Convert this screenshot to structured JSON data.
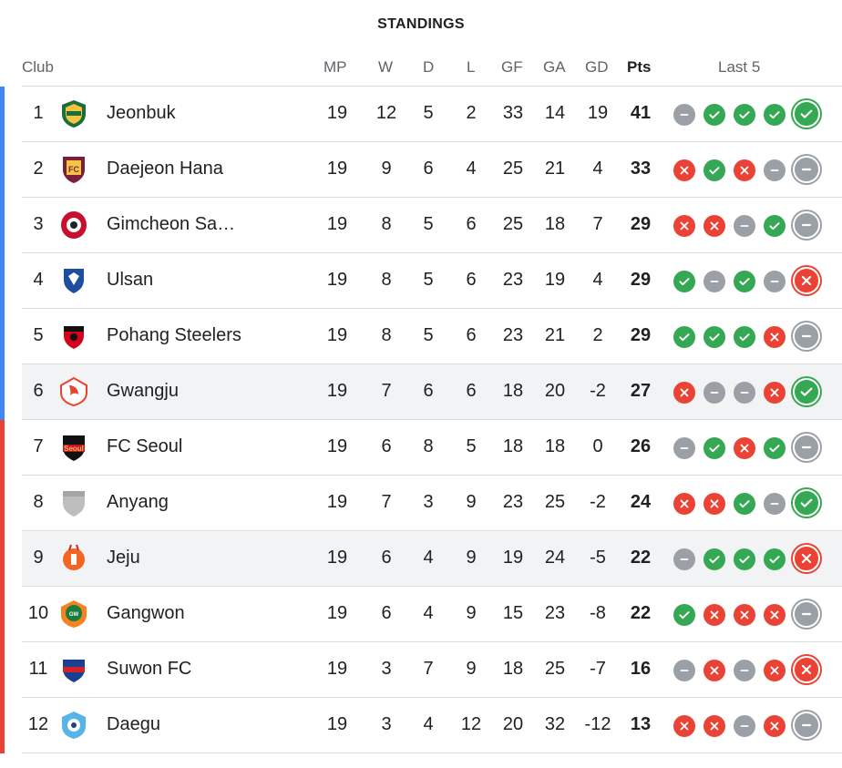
{
  "title": "STANDINGS",
  "headers": {
    "club": "Club",
    "mp": "MP",
    "w": "W",
    "d": "D",
    "l": "L",
    "gf": "GF",
    "ga": "GA",
    "gd": "GD",
    "pts": "Pts",
    "last5": "Last 5"
  },
  "colors": {
    "win": "#34a853",
    "loss": "#ea4335",
    "draw": "#9aa0a6",
    "stripe_blue": "#4285f4",
    "stripe_red": "#ea4335"
  },
  "rows": [
    {
      "pos": "1",
      "club": "Jeonbuk",
      "mp": "19",
      "w": "12",
      "d": "5",
      "l": "2",
      "gf": "33",
      "ga": "14",
      "gd": "19",
      "pts": "41",
      "form": [
        "D",
        "W",
        "W",
        "W",
        "W"
      ],
      "zone": "blue",
      "highlight": false,
      "logo": "jeonbuk-logo"
    },
    {
      "pos": "2",
      "club": "Daejeon Hana",
      "mp": "19",
      "w": "9",
      "d": "6",
      "l": "4",
      "gf": "25",
      "ga": "21",
      "gd": "4",
      "pts": "33",
      "form": [
        "L",
        "W",
        "L",
        "D",
        "D"
      ],
      "zone": "blue",
      "highlight": false,
      "logo": "daejeon-logo"
    },
    {
      "pos": "3",
      "club": "Gimcheon Sa…",
      "mp": "19",
      "w": "8",
      "d": "5",
      "l": "6",
      "gf": "25",
      "ga": "18",
      "gd": "7",
      "pts": "29",
      "form": [
        "L",
        "L",
        "D",
        "W",
        "D"
      ],
      "zone": "blue",
      "highlight": false,
      "logo": "gimcheon-logo"
    },
    {
      "pos": "4",
      "club": "Ulsan",
      "mp": "19",
      "w": "8",
      "d": "5",
      "l": "6",
      "gf": "23",
      "ga": "19",
      "gd": "4",
      "pts": "29",
      "form": [
        "W",
        "D",
        "W",
        "D",
        "L"
      ],
      "zone": "blue",
      "highlight": false,
      "logo": "ulsan-logo"
    },
    {
      "pos": "5",
      "club": "Pohang Steelers",
      "mp": "19",
      "w": "8",
      "d": "5",
      "l": "6",
      "gf": "23",
      "ga": "21",
      "gd": "2",
      "pts": "29",
      "form": [
        "W",
        "W",
        "W",
        "L",
        "D"
      ],
      "zone": "blue",
      "highlight": false,
      "logo": "pohang-logo"
    },
    {
      "pos": "6",
      "club": "Gwangju",
      "mp": "19",
      "w": "7",
      "d": "6",
      "l": "6",
      "gf": "18",
      "ga": "20",
      "gd": "-2",
      "pts": "27",
      "form": [
        "L",
        "D",
        "D",
        "L",
        "W"
      ],
      "zone": "blue",
      "highlight": true,
      "logo": "gwangju-logo"
    },
    {
      "pos": "7",
      "club": "FC Seoul",
      "mp": "19",
      "w": "6",
      "d": "8",
      "l": "5",
      "gf": "18",
      "ga": "18",
      "gd": "0",
      "pts": "26",
      "form": [
        "D",
        "W",
        "L",
        "W",
        "D"
      ],
      "zone": "red",
      "highlight": false,
      "logo": "seoul-logo"
    },
    {
      "pos": "8",
      "club": "Anyang",
      "mp": "19",
      "w": "7",
      "d": "3",
      "l": "9",
      "gf": "23",
      "ga": "25",
      "gd": "-2",
      "pts": "24",
      "form": [
        "L",
        "L",
        "W",
        "D",
        "W"
      ],
      "zone": "red",
      "highlight": false,
      "logo": "anyang-logo"
    },
    {
      "pos": "9",
      "club": "Jeju",
      "mp": "19",
      "w": "6",
      "d": "4",
      "l": "9",
      "gf": "19",
      "ga": "24",
      "gd": "-5",
      "pts": "22",
      "form": [
        "D",
        "W",
        "W",
        "W",
        "L"
      ],
      "zone": "red",
      "highlight": true,
      "logo": "jeju-logo"
    },
    {
      "pos": "10",
      "club": "Gangwon",
      "mp": "19",
      "w": "6",
      "d": "4",
      "l": "9",
      "gf": "15",
      "ga": "23",
      "gd": "-8",
      "pts": "22",
      "form": [
        "W",
        "L",
        "L",
        "L",
        "D"
      ],
      "zone": "red",
      "highlight": false,
      "logo": "gangwon-logo"
    },
    {
      "pos": "11",
      "club": "Suwon FC",
      "mp": "19",
      "w": "3",
      "d": "7",
      "l": "9",
      "gf": "18",
      "ga": "25",
      "gd": "-7",
      "pts": "16",
      "form": [
        "D",
        "L",
        "D",
        "L",
        "L"
      ],
      "zone": "red",
      "highlight": false,
      "logo": "suwon-logo"
    },
    {
      "pos": "12",
      "club": "Daegu",
      "mp": "19",
      "w": "3",
      "d": "4",
      "l": "12",
      "gf": "20",
      "ga": "32",
      "gd": "-12",
      "pts": "13",
      "form": [
        "L",
        "L",
        "D",
        "L",
        "D"
      ],
      "zone": "red",
      "highlight": false,
      "logo": "daegu-logo"
    }
  ]
}
